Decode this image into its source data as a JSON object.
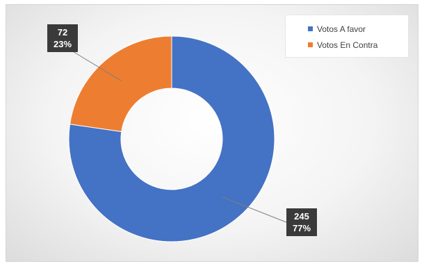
{
  "chart_data": {
    "type": "pie",
    "donut": true,
    "categories": [
      "Votos A favor",
      "Votos En Contra"
    ],
    "values": [
      245,
      72
    ],
    "percent_labels": [
      "77%",
      "23%"
    ],
    "value_labels": [
      "245",
      "72"
    ],
    "colors": [
      "#4472c4",
      "#ed7d31"
    ],
    "legend_position": "top-right",
    "title": ""
  }
}
